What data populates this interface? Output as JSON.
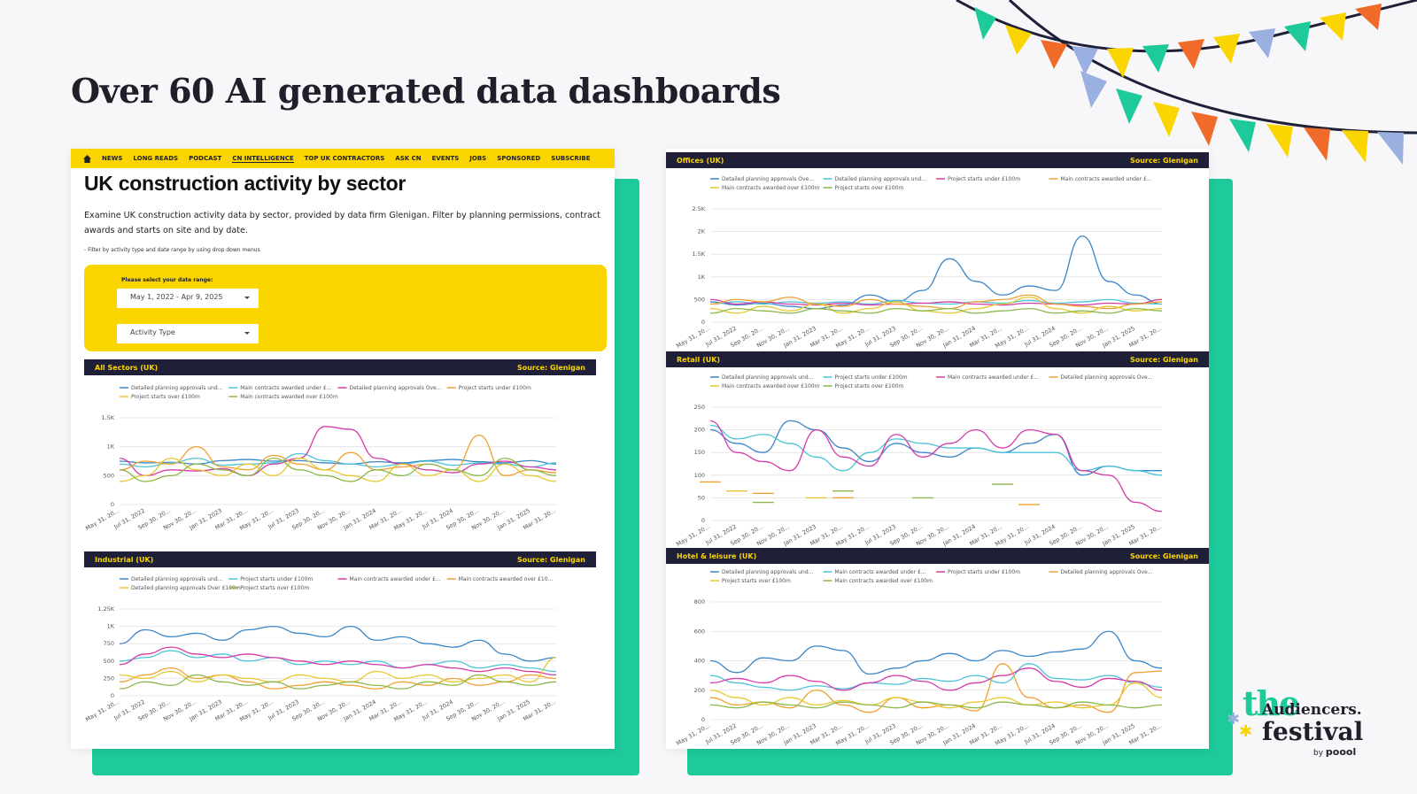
{
  "slide": {
    "title": "Over 60 AI generated data dashboards"
  },
  "nav": {
    "items": [
      "NEWS",
      "LONG READS",
      "PODCAST",
      "CN INTELLIGENCE",
      "TOP UK CONTRACTORS",
      "ASK CN",
      "EVENTS",
      "JOBS",
      "SPONSORED",
      "SUBSCRIBE"
    ],
    "active": "CN INTELLIGENCE"
  },
  "page": {
    "title": "UK construction activity by sector",
    "description": "Examine UK construction activity data by sector, provided by data firm Glenigan. Filter by planning permissions, contract awards and starts on site and by date.",
    "note": "- Filter by activity type and date range by using drop down menus",
    "date_label": "Please select your date range:",
    "date_value": "May 1, 2022 - Apr 9, 2025",
    "activity_placeholder": "Activity Type"
  },
  "logo": {
    "the": "the",
    "audiencers": "Audiencers.",
    "festival": "festival",
    "by": "by",
    "brand": "poool"
  },
  "colors": {
    "navy": "#1f2038",
    "yellow": "#fbd500",
    "teal": "#1ec99a",
    "s1": "#3a86c8",
    "s2": "#4cc3d9",
    "s3": "#d63aa8",
    "s4": "#f0a030",
    "s5": "#e8c830",
    "s6": "#8cb84a"
  },
  "x_ticks": [
    "May 31, 20...",
    "Jul 31, 2022",
    "Sep 30, 20...",
    "Nov 30, 20...",
    "Jan 31, 2023",
    "Mar 31, 20...",
    "May 31, 20...",
    "Jul 31, 2023",
    "Sep 30, 20...",
    "Nov 30, 20...",
    "Jan 31, 2024",
    "Mar 31, 20...",
    "May 31, 20...",
    "Jul 31, 2024",
    "Sep 30, 20...",
    "Nov 30, 20...",
    "Jan 31, 2025",
    "Mar 31, 20..."
  ],
  "chart_data": [
    {
      "id": "all-sectors",
      "type": "line",
      "title": "All Sectors (UK)",
      "source": "Source: Glenigan",
      "y_ticks": [
        "0",
        "500",
        "1K",
        "1.5K"
      ],
      "ylim": [
        0,
        1500
      ],
      "legend": [
        "Detailed planning approvals und...",
        "Main contracts awarded under £...",
        "Detailed planning approvals Ove...",
        "Project starts under £100m",
        "Project starts over £100m",
        "Main contracts awarded over £100m"
      ],
      "series": [
        {
          "name": "Detailed planning approvals und...",
          "color": "s1",
          "values": [
            750,
            720,
            730,
            700,
            760,
            780,
            750,
            760,
            720,
            700,
            740,
            720,
            760,
            780,
            740,
            720,
            760,
            700
          ]
        },
        {
          "name": "Main contracts awarded under £...",
          "color": "s2",
          "values": [
            700,
            650,
            720,
            800,
            680,
            700,
            720,
            880,
            760,
            700,
            650,
            700,
            750,
            680,
            720,
            700,
            650,
            720
          ]
        },
        {
          "name": "Detailed planning approvals Ove...",
          "color": "s3",
          "values": [
            800,
            500,
            600,
            580,
            620,
            500,
            700,
            800,
            1350,
            1300,
            800,
            700,
            600,
            550,
            700,
            750,
            650,
            600
          ]
        },
        {
          "name": "Project starts under £100m",
          "color": "s4",
          "values": [
            600,
            750,
            700,
            1000,
            650,
            600,
            850,
            700,
            600,
            900,
            600,
            650,
            700,
            600,
            1200,
            500,
            600,
            550
          ]
        },
        {
          "name": "Project starts over £100m",
          "color": "s5",
          "values": [
            400,
            500,
            800,
            600,
            500,
            700,
            500,
            800,
            600,
            500,
            400,
            700,
            500,
            600,
            400,
            700,
            500,
            400
          ]
        },
        {
          "name": "Main contracts awarded over £100m",
          "color": "s6",
          "values": [
            600,
            400,
            500,
            700,
            600,
            500,
            800,
            600,
            500,
            400,
            600,
            500,
            700,
            600,
            500,
            800,
            600,
            500
          ]
        }
      ]
    },
    {
      "id": "industrial",
      "type": "line",
      "title": "Industrial (UK)",
      "source": "Source: Glenigan",
      "y_ticks": [
        "0",
        "250",
        "500",
        "750",
        "1K",
        "1.25K"
      ],
      "ylim": [
        0,
        1250
      ],
      "legend": [
        "Detailed planning approvals und...",
        "Project starts under £100m",
        "Main contracts awarded under £...",
        "Main contracts awarded over £10...",
        "Detailed planning approvals Over £100m",
        "Project starts over £100m"
      ],
      "series": [
        {
          "name": "Detailed planning approvals und...",
          "color": "s1",
          "values": [
            750,
            950,
            850,
            900,
            800,
            950,
            1000,
            900,
            850,
            1000,
            800,
            850,
            750,
            700,
            800,
            600,
            500,
            550
          ]
        },
        {
          "name": "Project starts under £100m",
          "color": "s2",
          "values": [
            500,
            550,
            650,
            550,
            600,
            500,
            550,
            450,
            500,
            450,
            500,
            400,
            450,
            500,
            400,
            450,
            400,
            350
          ]
        },
        {
          "name": "Main contracts awarded under £...",
          "color": "s3",
          "values": [
            450,
            600,
            700,
            600,
            550,
            600,
            550,
            500,
            450,
            500,
            450,
            400,
            450,
            400,
            350,
            400,
            350,
            300
          ]
        },
        {
          "name": "Main contracts awarded over £10...",
          "color": "s4",
          "values": [
            200,
            300,
            400,
            250,
            300,
            200,
            100,
            150,
            200,
            150,
            100,
            200,
            150,
            250,
            150,
            200,
            300,
            250
          ]
        },
        {
          "name": "Detailed planning approvals Over £100m",
          "color": "s5",
          "values": [
            300,
            250,
            350,
            200,
            300,
            250,
            200,
            300,
            250,
            200,
            350,
            250,
            300,
            200,
            250,
            300,
            200,
            550
          ]
        },
        {
          "name": "Project starts over £100m",
          "color": "s6",
          "values": [
            100,
            200,
            150,
            300,
            200,
            150,
            200,
            100,
            150,
            200,
            150,
            100,
            200,
            150,
            300,
            200,
            150,
            200
          ]
        }
      ]
    },
    {
      "id": "offices",
      "type": "line",
      "title": "Offices (UK)",
      "source": "Source: Glenigan",
      "y_ticks": [
        "0",
        "500",
        "1K",
        "1.5K",
        "2K",
        "2.5K"
      ],
      "ylim": [
        0,
        2500
      ],
      "legend": [
        "Detailed planning approvals Ove...",
        "Detailed planning approvals und...",
        "Project starts under £100m",
        "Main contracts awarded under £...",
        "Main contracts awarded over £100m",
        "Project starts over £100m"
      ],
      "series": [
        {
          "name": "Detailed planning approvals Ove...",
          "color": "s1",
          "values": [
            450,
            380,
            420,
            350,
            300,
            380,
            600,
            450,
            700,
            1400,
            900,
            600,
            800,
            700,
            1900,
            900,
            600,
            400
          ]
        },
        {
          "name": "Detailed planning approvals und...",
          "color": "s2",
          "values": [
            400,
            450,
            400,
            450,
            420,
            450,
            400,
            480,
            420,
            400,
            450,
            420,
            480,
            420,
            450,
            500,
            420,
            400
          ]
        },
        {
          "name": "Project starts under £100m",
          "color": "s3",
          "values": [
            500,
            400,
            450,
            400,
            380,
            420,
            380,
            400,
            420,
            450,
            400,
            380,
            420,
            400,
            380,
            420,
            400,
            500
          ]
        },
        {
          "name": "Main contracts awarded under £...",
          "color": "s4",
          "values": [
            400,
            500,
            450,
            550,
            400,
            350,
            500,
            400,
            350,
            300,
            450,
            500,
            600,
            400,
            350,
            300,
            400,
            450
          ]
        },
        {
          "name": "Main contracts awarded over £100m",
          "color": "s5",
          "values": [
            300,
            200,
            350,
            250,
            400,
            200,
            300,
            450,
            250,
            200,
            300,
            400,
            550,
            300,
            200,
            350,
            250,
            300
          ]
        },
        {
          "name": "Project starts over £100m",
          "color": "s6",
          "values": [
            200,
            300,
            250,
            200,
            300,
            250,
            200,
            300,
            250,
            300,
            200,
            250,
            300,
            200,
            250,
            200,
            300,
            250
          ]
        }
      ]
    },
    {
      "id": "retail",
      "type": "line",
      "title": "Retail (UK)",
      "source": "Source: Glenigan",
      "y_ticks": [
        "0",
        "50",
        "100",
        "150",
        "200",
        "250"
      ],
      "ylim": [
        0,
        250
      ],
      "legend": [
        "Detailed planning approvals und...",
        "Project starts under £100m",
        "Main contracts awarded under £...",
        "Detailed planning approvals Ove...",
        "Main contracts awarded over £100m",
        "Project starts over £100m"
      ],
      "series": [
        {
          "name": "Detailed planning approvals und...",
          "color": "s1",
          "values": [
            200,
            170,
            150,
            220,
            200,
            160,
            130,
            170,
            150,
            140,
            160,
            150,
            170,
            190,
            100,
            120,
            110,
            110
          ]
        },
        {
          "name": "Project starts under £100m",
          "color": "s2",
          "values": [
            210,
            180,
            190,
            170,
            140,
            110,
            150,
            180,
            170,
            160,
            160,
            150,
            150,
            150,
            110,
            120,
            110,
            100
          ]
        },
        {
          "name": "Main contracts awarded under £...",
          "color": "s3",
          "values": [
            220,
            150,
            130,
            110,
            200,
            140,
            120,
            190,
            140,
            170,
            200,
            160,
            200,
            190,
            110,
            100,
            40,
            20
          ]
        },
        {
          "name": "Detailed planning approvals Ove...",
          "color": "s4",
          "values": [
            85,
            null,
            60,
            null,
            null,
            50,
            null,
            null,
            null,
            null,
            null,
            null,
            35,
            null,
            null,
            null,
            null,
            null
          ]
        },
        {
          "name": "Main contracts awarded over £100m",
          "color": "s5",
          "values": [
            null,
            65,
            null,
            null,
            50,
            null,
            null,
            null,
            null,
            null,
            null,
            null,
            null,
            null,
            null,
            null,
            null,
            null
          ]
        },
        {
          "name": "Project starts over £100m",
          "color": "s6",
          "values": [
            null,
            null,
            40,
            null,
            null,
            65,
            null,
            null,
            50,
            null,
            null,
            80,
            null,
            null,
            null,
            null,
            null,
            null
          ]
        }
      ]
    },
    {
      "id": "hotel",
      "type": "line",
      "title": "Hotel & leisure (UK)",
      "source": "Source: Glenigan",
      "y_ticks": [
        "0",
        "200",
        "400",
        "600",
        "800"
      ],
      "ylim": [
        0,
        800
      ],
      "legend": [
        "Detailed planning approvals und...",
        "Main contracts awarded under £...",
        "Project starts under £100m",
        "Detailed planning approvals Ove...",
        "Project starts over £100m",
        "Main contracts awarded over £100m"
      ],
      "series": [
        {
          "name": "Detailed planning approvals und...",
          "color": "s1",
          "values": [
            400,
            320,
            420,
            400,
            500,
            470,
            310,
            350,
            400,
            450,
            400,
            470,
            430,
            460,
            480,
            600,
            400,
            350
          ]
        },
        {
          "name": "Main contracts awarded under £...",
          "color": "s2",
          "values": [
            300,
            250,
            220,
            200,
            230,
            210,
            250,
            240,
            280,
            260,
            300,
            250,
            380,
            280,
            270,
            300,
            250,
            220
          ]
        },
        {
          "name": "Project starts under £100m",
          "color": "s3",
          "values": [
            250,
            280,
            250,
            300,
            260,
            200,
            250,
            300,
            260,
            200,
            250,
            300,
            350,
            260,
            220,
            280,
            260,
            200
          ]
        },
        {
          "name": "Detailed planning approvals Ove...",
          "color": "s4",
          "values": [
            150,
            100,
            120,
            80,
            200,
            100,
            50,
            150,
            80,
            100,
            60,
            380,
            150,
            80,
            100,
            50,
            320,
            330
          ]
        },
        {
          "name": "Project starts over £100m",
          "color": "s5",
          "values": [
            200,
            150,
            100,
            150,
            100,
            130,
            100,
            150,
            120,
            80,
            120,
            150,
            100,
            120,
            80,
            100,
            250,
            150
          ]
        },
        {
          "name": "Main contracts awarded over £100m",
          "color": "s6",
          "values": [
            100,
            80,
            120,
            100,
            80,
            120,
            100,
            80,
            120,
            100,
            80,
            120,
            100,
            80,
            120,
            100,
            80,
            100
          ]
        }
      ]
    }
  ]
}
